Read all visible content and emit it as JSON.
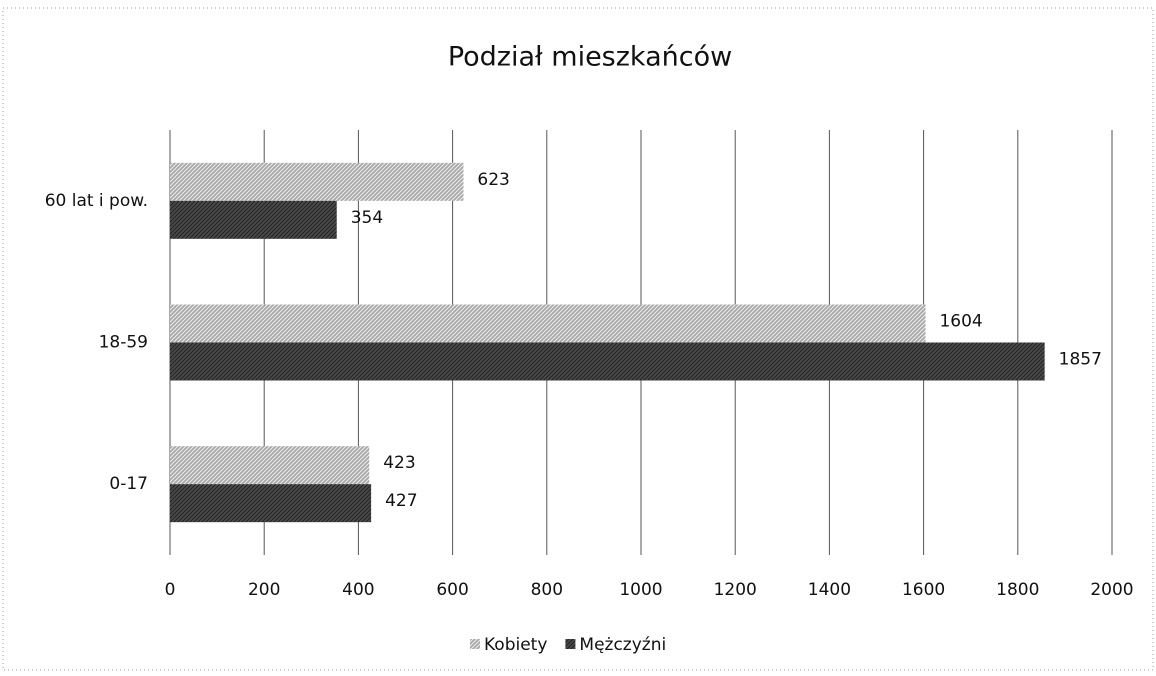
{
  "chart_data": {
    "type": "barh",
    "title": "Podział mieszkańców",
    "categories": [
      "0-17",
      "18-59",
      "60 lat i pow."
    ],
    "series": [
      {
        "name": "Kobiety",
        "color": "#a8a8a8",
        "values": [
          423,
          1604,
          623
        ]
      },
      {
        "name": "Mężczyźni",
        "color": "#4a4a4a",
        "values": [
          427,
          1857,
          354
        ]
      }
    ],
    "xlim": [
      0,
      2000
    ],
    "xticks": [
      0,
      200,
      400,
      600,
      800,
      1000,
      1200,
      1400,
      1600,
      1800,
      2000
    ],
    "grid": true,
    "legend": "bottom"
  }
}
